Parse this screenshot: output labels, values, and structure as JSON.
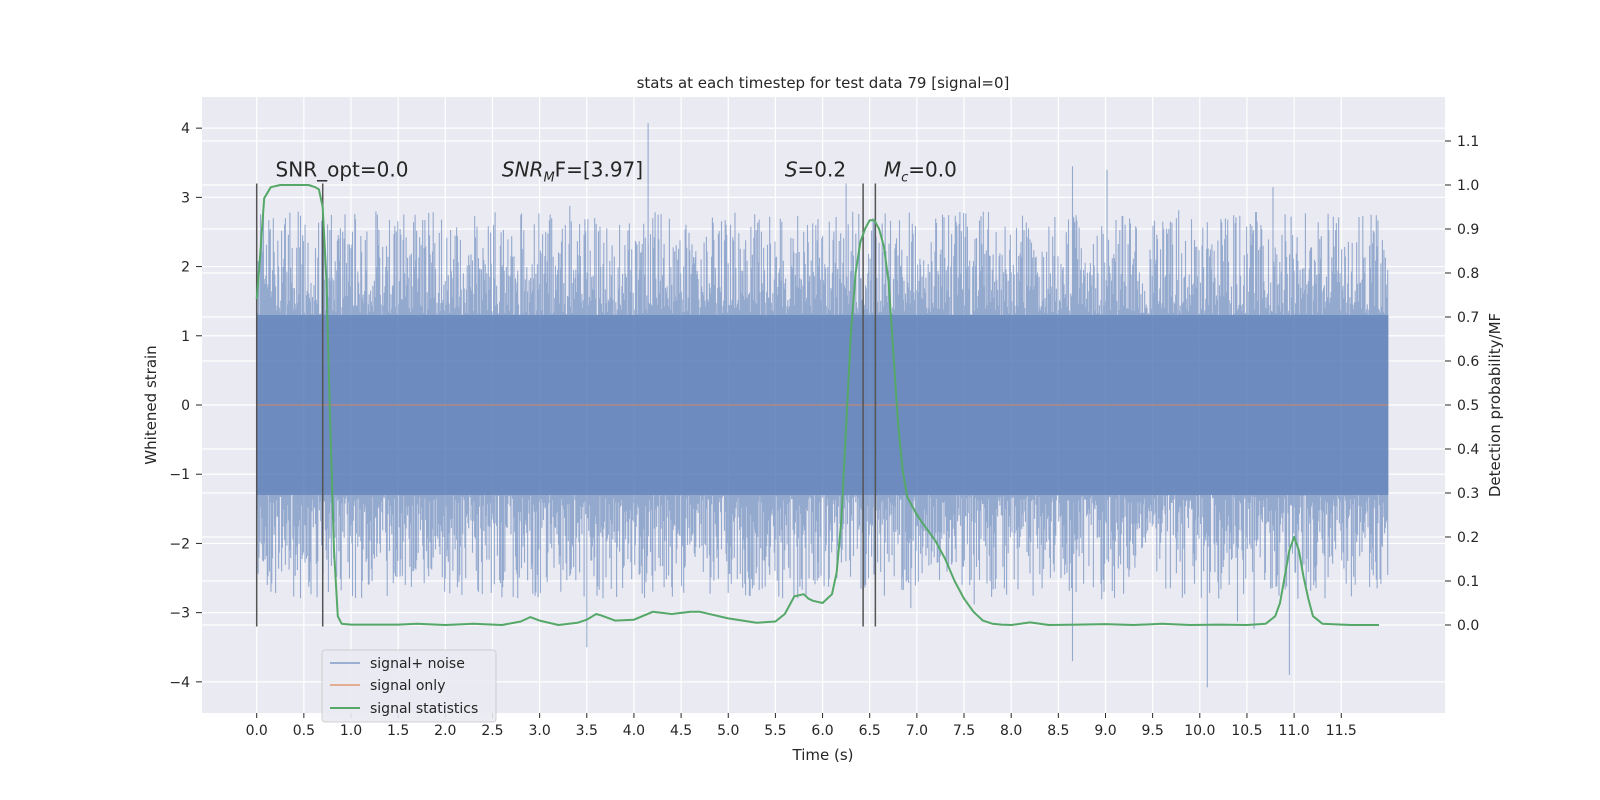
{
  "chart_data": {
    "type": "line",
    "title": "stats at each timestep for test data 79 [signal=0]",
    "xlabel": "Time (s)",
    "ylabel_left": "Whitened strain",
    "ylabel_right": "Detection probability/MF",
    "xlim": [
      -0.58,
      12.6
    ],
    "ylim_left": [
      -4.45,
      4.45
    ],
    "ylim_right": [
      -0.2,
      1.2
    ],
    "x_ticks": [
      0.0,
      0.5,
      1.0,
      1.5,
      2.0,
      2.5,
      3.0,
      3.5,
      4.0,
      4.5,
      5.0,
      5.5,
      6.0,
      6.5,
      7.0,
      7.5,
      8.0,
      8.5,
      9.0,
      9.5,
      10.0,
      10.5,
      11.0,
      11.5
    ],
    "x_tick_labels": [
      "0.0",
      "0.5",
      "1.0",
      "1.5",
      "2.0",
      "2.5",
      "3.0",
      "3.5",
      "4.0",
      "4.5",
      "5.0",
      "5.5",
      "6.0",
      "6.5",
      "7.0",
      "7.5",
      "8.0",
      "8.5",
      "9.0",
      "9.5",
      "10.0",
      "10.5",
      "11.0",
      "11.5"
    ],
    "y_left_ticks": [
      -4,
      -3,
      -2,
      -1,
      0,
      1,
      2,
      3,
      4
    ],
    "y_left_tick_labels": [
      "−4",
      "−3",
      "−2",
      "−1",
      "0",
      "1",
      "2",
      "3",
      "4"
    ],
    "y_right_ticks": [
      0.0,
      0.1,
      0.2,
      0.3,
      0.4,
      0.5,
      0.6,
      0.7,
      0.8,
      0.9,
      1.0,
      1.1
    ],
    "y_right_tick_labels": [
      "0.0",
      "0.1",
      "0.2",
      "0.3",
      "0.4",
      "0.5",
      "0.6",
      "0.7",
      "0.8",
      "0.9",
      "1.0",
      "1.1"
    ],
    "grid": true,
    "legend_position": "lower-left",
    "series": [
      {
        "name": "signal+ noise",
        "axis": "left",
        "color": "#4c72b0",
        "kind": "noise-band",
        "t_range": [
          0.0,
          12.0
        ],
        "core_amplitude": 1.3,
        "typical_extreme": 2.4,
        "max_value": 4.07,
        "min_value": -4.08
      },
      {
        "name": "signal only",
        "axis": "left",
        "color": "#dd8452",
        "x": [
          0.0,
          12.0
        ],
        "y": [
          0.0,
          0.0
        ]
      },
      {
        "name": "signal statistics",
        "axis": "right",
        "color": "#55a868",
        "x": [
          0.0,
          0.03,
          0.08,
          0.15,
          0.25,
          0.4,
          0.55,
          0.62,
          0.66,
          0.7,
          0.74,
          0.78,
          0.82,
          0.86,
          0.9,
          1.0,
          1.5,
          1.7,
          2.0,
          2.3,
          2.6,
          2.8,
          2.9,
          3.0,
          3.2,
          3.4,
          3.5,
          3.6,
          3.65,
          3.8,
          4.0,
          4.2,
          4.4,
          4.6,
          4.7,
          5.0,
          5.3,
          5.5,
          5.6,
          5.7,
          5.8,
          5.85,
          5.9,
          6.0,
          6.1,
          6.15,
          6.2,
          6.25,
          6.3,
          6.35,
          6.4,
          6.45,
          6.5,
          6.55,
          6.6,
          6.65,
          6.7,
          6.75,
          6.8,
          6.85,
          6.9,
          6.95,
          7.0,
          7.1,
          7.2,
          7.3,
          7.4,
          7.5,
          7.6,
          7.7,
          7.8,
          7.9,
          8.0,
          8.2,
          8.4,
          8.7,
          9.0,
          9.3,
          9.6,
          9.9,
          10.2,
          10.5,
          10.7,
          10.8,
          10.85,
          10.9,
          10.95,
          11.0,
          11.05,
          11.1,
          11.15,
          11.2,
          11.3,
          11.6,
          11.9
        ],
        "y": [
          0.74,
          0.82,
          0.97,
          0.995,
          1.0,
          1.0,
          1.0,
          0.995,
          0.99,
          0.95,
          0.78,
          0.45,
          0.17,
          0.02,
          0.003,
          0.001,
          0.001,
          0.003,
          0.0,
          0.003,
          0.0,
          0.008,
          0.018,
          0.01,
          0.0,
          0.005,
          0.012,
          0.025,
          0.022,
          0.01,
          0.012,
          0.03,
          0.025,
          0.03,
          0.03,
          0.015,
          0.005,
          0.008,
          0.025,
          0.065,
          0.07,
          0.06,
          0.055,
          0.05,
          0.07,
          0.12,
          0.24,
          0.45,
          0.66,
          0.8,
          0.87,
          0.9,
          0.92,
          0.92,
          0.9,
          0.86,
          0.78,
          0.62,
          0.46,
          0.35,
          0.29,
          0.27,
          0.25,
          0.22,
          0.19,
          0.15,
          0.1,
          0.06,
          0.03,
          0.01,
          0.003,
          0.001,
          0.0,
          0.006,
          0.0,
          0.001,
          0.002,
          0.0,
          0.003,
          0.0,
          0.001,
          0.0,
          0.003,
          0.02,
          0.05,
          0.11,
          0.17,
          0.2,
          0.17,
          0.11,
          0.06,
          0.02,
          0.003,
          0.0,
          0.0
        ]
      }
    ],
    "vlines": {
      "color": "#555555",
      "x": [
        0.0,
        0.7,
        6.43,
        6.56
      ],
      "y_range_left": [
        -3.2,
        3.2
      ]
    },
    "annotations": [
      {
        "id": "snr-opt",
        "text": "SNR_opt=0.0",
        "x": 0.2,
        "y": 3.3
      },
      {
        "id": "snr-mf",
        "base": "SNR",
        "sub": "M",
        "tail": "F=[3.97]",
        "x": 2.6,
        "y": 3.3
      },
      {
        "id": "s-val",
        "base": "S",
        "tail": "=0.2",
        "x": 5.6,
        "y": 3.3
      },
      {
        "id": "mc-val",
        "base": "M",
        "sub": "c",
        "tail": "=0.0",
        "x": 6.65,
        "y": 3.3
      }
    ]
  }
}
